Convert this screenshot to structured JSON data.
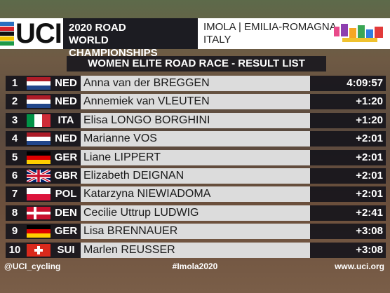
{
  "header": {
    "logo": "UCI",
    "event_line1": "2020 ROAD",
    "event_line2": "WORLD CHAMPIONSHIPS",
    "location_line1": "IMOLA | EMILIA-ROMAGNA",
    "location_line2": "ITALY"
  },
  "title": "WOMEN ELITE ROAD RACE - RESULT LIST",
  "rows": [
    {
      "position": "1",
      "nation": "NED",
      "name": "Anna van der BREGGEN",
      "time": "4:09:57"
    },
    {
      "position": "2",
      "nation": "NED",
      "name": "Annemiek van VLEUTEN",
      "time": "+1:20"
    },
    {
      "position": "3",
      "nation": "ITA",
      "name": "Elisa LONGO BORGHINI",
      "time": "+1:20"
    },
    {
      "position": "4",
      "nation": "NED",
      "name": "Marianne VOS",
      "time": "+2:01"
    },
    {
      "position": "5",
      "nation": "GER",
      "name": "Liane LIPPERT",
      "time": "+2:01"
    },
    {
      "position": "6",
      "nation": "GBR",
      "name": "Elizabeth DEIGNAN",
      "time": "+2:01"
    },
    {
      "position": "7",
      "nation": "POL",
      "name": "Katarzyna NIEWIADOMA",
      "time": "+2:01"
    },
    {
      "position": "8",
      "nation": "DEN",
      "name": "Cecilie Uttrup LUDWIG",
      "time": "+2:41"
    },
    {
      "position": "9",
      "nation": "GER",
      "name": "Lisa BRENNAUER",
      "time": "+3:08"
    },
    {
      "position": "10",
      "nation": "SUI",
      "name": "Marlen REUSSER",
      "time": "+3:08"
    }
  ],
  "footer": {
    "left": "@UCI_cycling",
    "center": "#Imola2020",
    "right": "www.uci.org"
  }
}
